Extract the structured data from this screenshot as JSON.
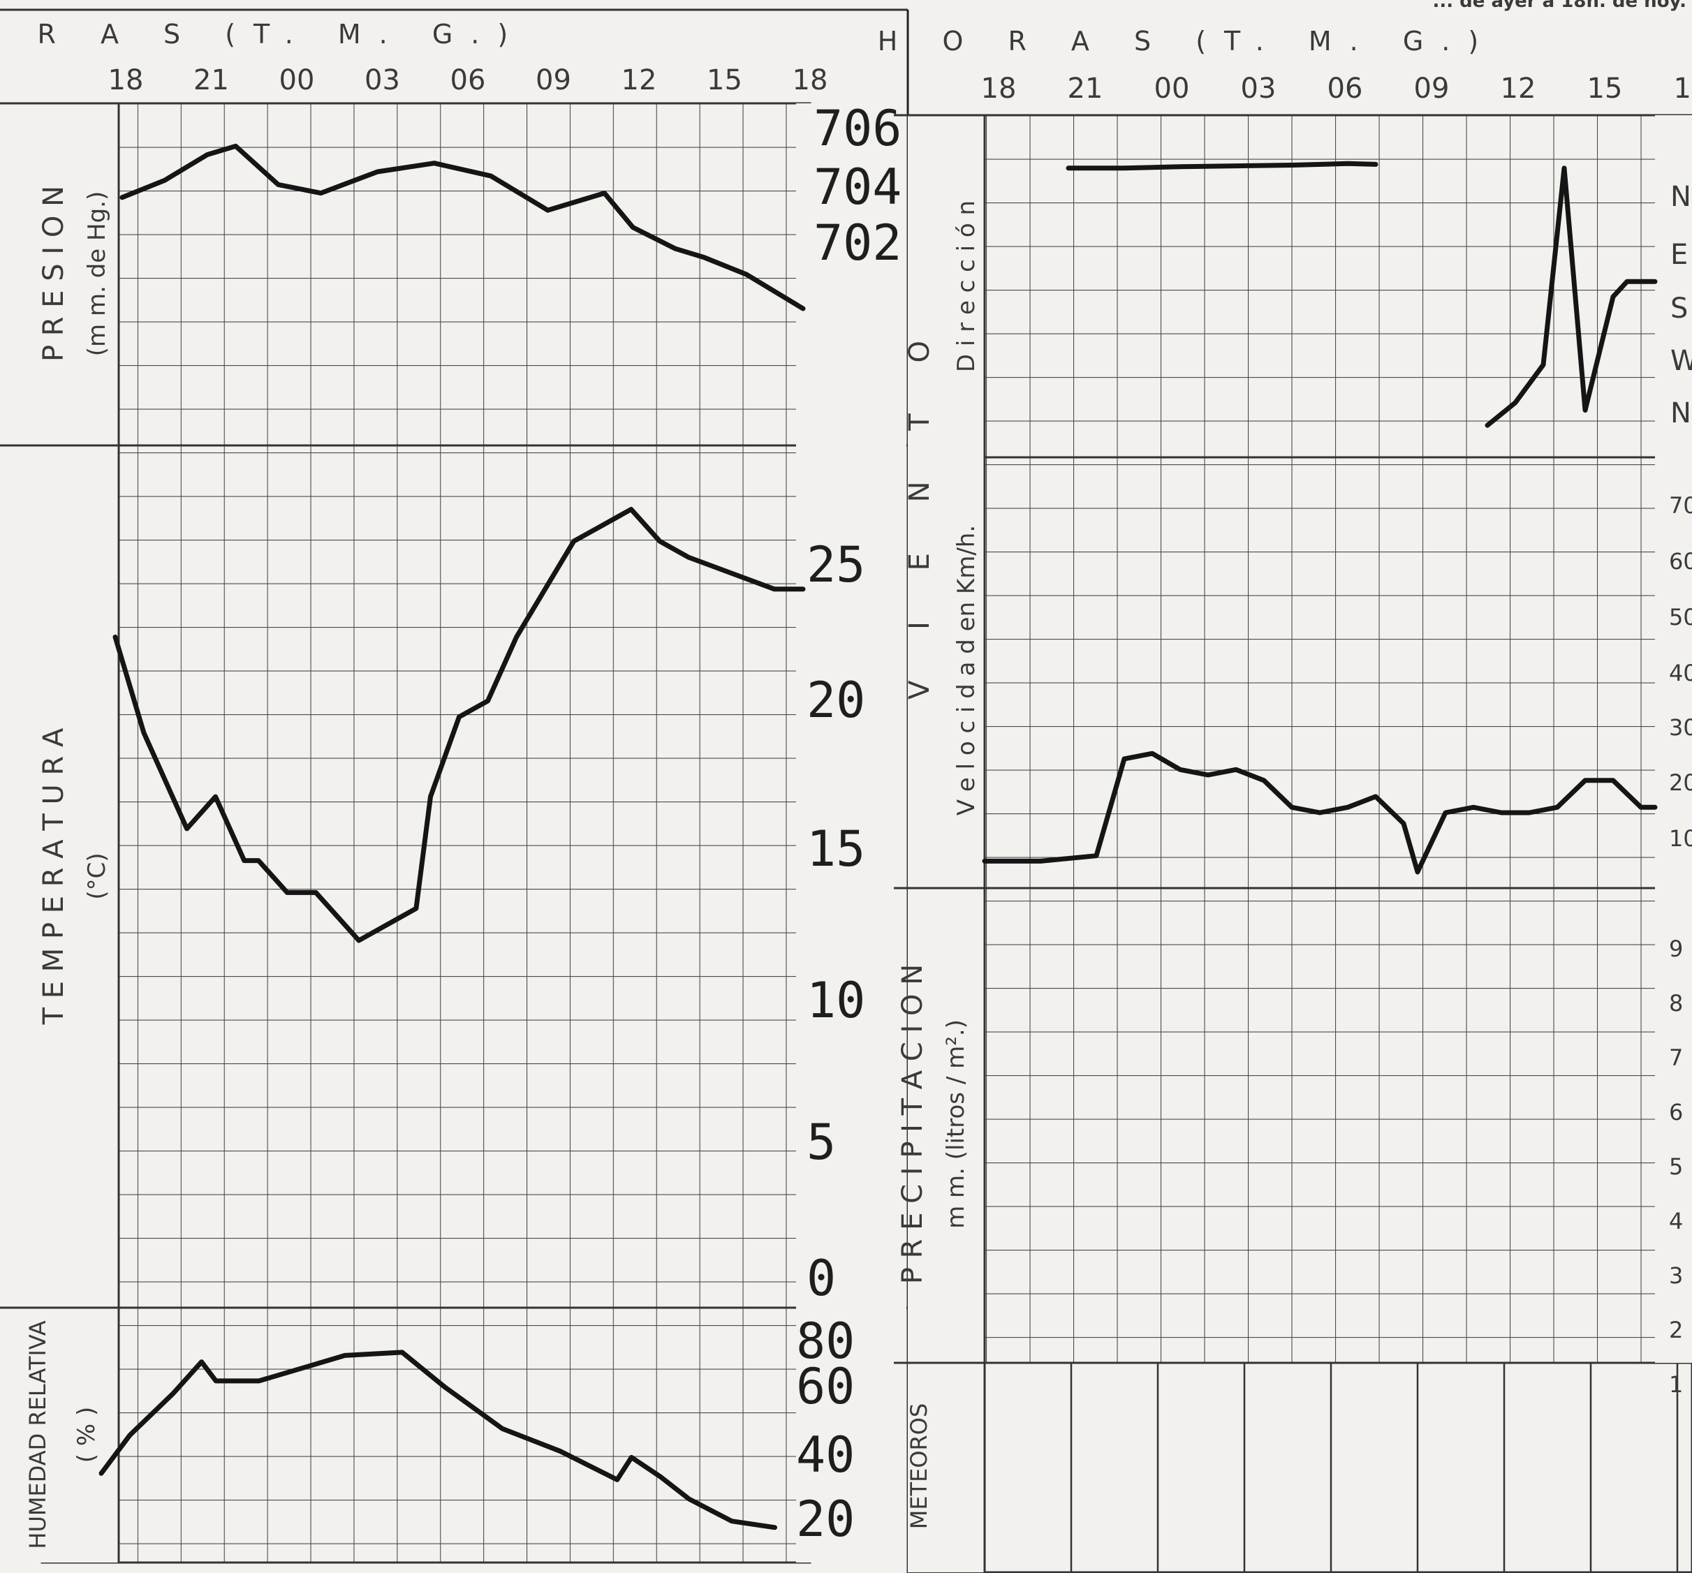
{
  "header": {
    "title_left": "H O R A S (T. M. G.)",
    "title_right": "H O R A S (T. M. G.)",
    "note": "... de ayer a 18h. de hoy."
  },
  "hours": [
    "18",
    "21",
    "00",
    "03",
    "06",
    "09",
    "12",
    "15",
    "18"
  ],
  "panels": {
    "pressure": {
      "label": "P R E S I O N",
      "unit": "(m m. de Hg.)",
      "ticks": [
        "706",
        "704",
        "702"
      ]
    },
    "temperature": {
      "label": "T E M P E R A T U R A",
      "unit": "(°C)",
      "ticks": [
        "25",
        "20",
        "15",
        "10",
        "5",
        "0"
      ]
    },
    "humidity": {
      "label": "HUMEDAD RELATIVA",
      "unit": "( % )",
      "ticks": [
        "80",
        "60",
        "40",
        "20"
      ]
    },
    "wind": {
      "label": "V I E N T O",
      "dir_label": "D i r e c c i ó n",
      "speed_label": "V e l o c i d a d   en Km/h.",
      "dir_ticks": [
        "N",
        "E",
        "S",
        "W",
        "N"
      ],
      "speed_ticks": [
        "70",
        "60",
        "50",
        "40",
        "30",
        "20",
        "10"
      ]
    },
    "precip": {
      "label": "P R E C I P I T A C I O N",
      "unit": "m m.  (litros / m².)",
      "ticks": [
        "9",
        "8",
        "7",
        "6",
        "5",
        "4",
        "3",
        "2",
        "1"
      ]
    },
    "meteoros": {
      "label": "METEOROS"
    }
  },
  "chart_data": [
    {
      "type": "line",
      "title": "P R E S I O N",
      "ylabel": "(m m. de Hg.)",
      "xlabel": "H O R A S (T. M. G.)",
      "ylim": [
        698,
        706
      ],
      "x_unit": "hours since 18 TMG",
      "x": [
        0,
        3,
        6,
        8,
        11,
        14,
        18,
        22,
        26,
        30,
        34,
        36,
        39,
        41,
        44,
        47,
        48
      ],
      "values": [
        703.8,
        704.2,
        704.8,
        705.0,
        704.1,
        703.9,
        704.4,
        704.6,
        704.3,
        703.5,
        703.9,
        703.1,
        702.6,
        702.4,
        702.0,
        701.4,
        701.2
      ]
    },
    {
      "type": "line",
      "title": "T E M P E R A T U R A",
      "ylabel": "(°C)",
      "xlabel": "H O R A S (T. M. G.)",
      "ylim": [
        0,
        27
      ],
      "x_unit": "hours since 18 TMG",
      "x": [
        0,
        2,
        5,
        7,
        9,
        10,
        12,
        14,
        17,
        19,
        21,
        22,
        24,
        26,
        28,
        30,
        32,
        34,
        36,
        38,
        40,
        43,
        46,
        48
      ],
      "values": [
        21,
        18,
        15,
        16,
        14,
        14,
        13,
        13,
        11.5,
        12,
        12.5,
        16,
        18.5,
        19,
        21,
        22.5,
        24,
        24.5,
        25,
        24,
        23.5,
        23,
        22.5,
        22.5
      ]
    },
    {
      "type": "line",
      "title": "HUMEDAD RELATIVA",
      "ylabel": "( % )",
      "xlabel": "H O R A S (T. M. G.)",
      "ylim": [
        15,
        95
      ],
      "x_unit": "hours since 18 TMG",
      "x": [
        0,
        2,
        5,
        7,
        8,
        11,
        14,
        17,
        21,
        24,
        28,
        32,
        36,
        37,
        39,
        41,
        44,
        47
      ],
      "values": [
        43,
        55,
        68,
        78,
        72,
        72,
        76,
        80,
        81,
        70,
        57,
        50,
        41,
        48,
        42,
        35,
        28,
        26
      ]
    },
    {
      "type": "line",
      "title": "D i r e c c i ó n",
      "ylabel": "V I E N T O",
      "xlabel": "H O R A S (T. M. G.)",
      "y_categories": [
        "N",
        "E",
        "S",
        "W",
        "N"
      ],
      "ylim": [
        0,
        360
      ],
      "y_unit": "degrees",
      "series": [
        {
          "x": [
            6,
            10,
            14,
            18,
            22,
            26,
            28
          ],
          "values": [
            10,
            10,
            8,
            7,
            6,
            4,
            5
          ]
        },
        {
          "x": [
            36,
            38,
            40,
            41.5,
            43,
            45,
            46,
            48
          ],
          "values": [
            350,
            320,
            270,
            10,
            330,
            180,
            160,
            160
          ]
        }
      ]
    },
    {
      "type": "line",
      "title": "V e l o c i d a d   en Km/h.",
      "ylabel": "V I E N T O",
      "xlabel": "H O R A S (T. M. G.)",
      "ylim": [
        0,
        80
      ],
      "x_unit": "hours since 18 TMG",
      "x": [
        0,
        4,
        8,
        10,
        12,
        14,
        16,
        18,
        20,
        22,
        24,
        26,
        28,
        30,
        31,
        33,
        35,
        37,
        39,
        41,
        43,
        45,
        47,
        48
      ],
      "values": [
        5,
        5,
        6,
        24,
        25,
        22,
        21,
        22,
        20,
        15,
        14,
        15,
        17,
        12,
        3,
        14,
        15,
        14,
        14,
        15,
        20,
        20,
        15,
        15
      ]
    }
  ]
}
